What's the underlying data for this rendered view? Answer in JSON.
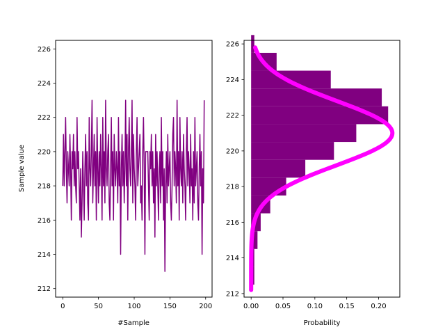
{
  "figure": {
    "background": "#ffffff"
  },
  "chart_data": [
    {
      "type": "line",
      "title": "",
      "xlabel": "#Sample",
      "ylabel": "Sample value",
      "xlim": [
        -10,
        209
      ],
      "ylim": [
        211.5,
        226.5
      ],
      "xticks": [
        0,
        50,
        100,
        150,
        200
      ],
      "yticks": [
        212,
        214,
        216,
        218,
        220,
        222,
        224,
        226
      ],
      "grid": false,
      "legend": "none",
      "series": [
        {
          "color": "#800080",
          "x_start": 0,
          "values": [
            218,
            221,
            218,
            220,
            222,
            219,
            217,
            220,
            219,
            218,
            221,
            219,
            216,
            220,
            219,
            221,
            218,
            220,
            218,
            217,
            222,
            219,
            220,
            218,
            216,
            219,
            215,
            217,
            220,
            218,
            216,
            219,
            221,
            218,
            220,
            217,
            216,
            222,
            219,
            218,
            220,
            223,
            217,
            219,
            221,
            218,
            220,
            216,
            222,
            219,
            217,
            220,
            218,
            221,
            219,
            216,
            222,
            218,
            220,
            217,
            223,
            219,
            218,
            220,
            221,
            217,
            216,
            219,
            222,
            218,
            220,
            216,
            221,
            219,
            218,
            220,
            219,
            217,
            222,
            218,
            220,
            214,
            219,
            221,
            218,
            220,
            217,
            219,
            223,
            218,
            221,
            216,
            220,
            222,
            219,
            218,
            220,
            223,
            217,
            221,
            219,
            218,
            216,
            220,
            222,
            218,
            219,
            220,
            221,
            217,
            218,
            216,
            220,
            222,
            219,
            214,
            220,
            220,
            220,
            220,
            218,
            216,
            220,
            219,
            221,
            218,
            220,
            217,
            219,
            215,
            221,
            218,
            220,
            218,
            216,
            219,
            220,
            217,
            222,
            218,
            220,
            216,
            219,
            213,
            218,
            220,
            217,
            221,
            218,
            219,
            220,
            217,
            216,
            218,
            221,
            222,
            218,
            220,
            219,
            217,
            223,
            218,
            220,
            216,
            222,
            219,
            218,
            220,
            217,
            221,
            219,
            218,
            216,
            220,
            222,
            218,
            220,
            219,
            217,
            221,
            218,
            219,
            216,
            220,
            217,
            222,
            218,
            219,
            220,
            217,
            216,
            219,
            221,
            218,
            220,
            214,
            219,
            217,
            223
          ]
        }
      ]
    },
    {
      "type": "bar",
      "orientation": "horizontal",
      "title": "",
      "xlabel": "Probability",
      "ylabel": "",
      "xlim": [
        -0.0111,
        0.2333
      ],
      "ylim": [
        211.8,
        226.2
      ],
      "xticks": [
        0.0,
        0.05,
        0.1,
        0.15,
        0.2
      ],
      "xtick_labels": [
        "0.00",
        "0.05",
        "0.10",
        "0.15",
        "0.20"
      ],
      "yticks": [
        212,
        214,
        216,
        218,
        220,
        222,
        224,
        226
      ],
      "grid": false,
      "legend": "none",
      "bar_color": "#800080",
      "bins": [
        213,
        214,
        215,
        216,
        217,
        218,
        219,
        220,
        221,
        222,
        223,
        224,
        225,
        226
      ],
      "probabilities": [
        0.005,
        0.005,
        0.01,
        0.015,
        0.03,
        0.055,
        0.085,
        0.13,
        0.165,
        0.215,
        0.205,
        0.125,
        0.04,
        0.005
      ],
      "fit_curve": {
        "color": "#ff00ff",
        "mean": 221.0,
        "std": 1.8,
        "y_range": [
          212.2,
          225.8
        ]
      }
    }
  ]
}
